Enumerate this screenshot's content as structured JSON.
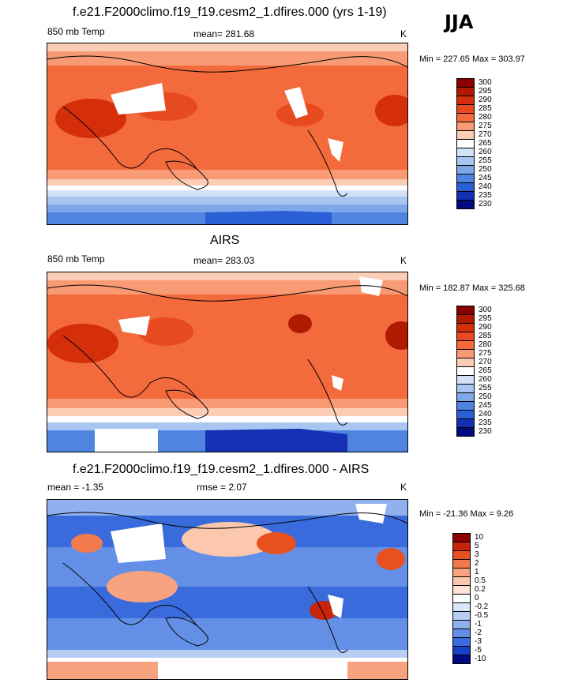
{
  "season": "JJA",
  "panels": [
    {
      "title": "f.e21.F2000climo.f19_f19.cesm2_1.dfires.000 (yrs 1-19)",
      "variable": "850 mb Temp",
      "stat": "mean= 281.68",
      "units": "K",
      "minmax": "Min = 227.65 Max = 303.97",
      "colorbar": [
        "300",
        "295",
        "290",
        "285",
        "280",
        "275",
        "270",
        "265",
        "260",
        "255",
        "250",
        "245",
        "240",
        "235",
        "230"
      ]
    },
    {
      "title": "AIRS",
      "variable": "850 mb Temp",
      "stat": "mean= 283.03",
      "units": "K",
      "minmax": "Min = 182.87 Max = 325.68",
      "colorbar": [
        "300",
        "295",
        "290",
        "285",
        "280",
        "275",
        "270",
        "265",
        "260",
        "255",
        "250",
        "245",
        "240",
        "235",
        "230"
      ]
    },
    {
      "title": "f.e21.F2000climo.f19_f19.cesm2_1.dfires.000 - AIRS",
      "variable": "mean =  -1.35",
      "stat": "rmse =   2.07",
      "units": "K",
      "minmax": "Min = -21.36 Max =   9.26",
      "colorbar": [
        "10",
        "5",
        "3",
        "2",
        "1",
        "0.5",
        "0.2",
        "0",
        "-0.2",
        "-0.5",
        "-1",
        "-2",
        "-3",
        "-5",
        "-10"
      ]
    }
  ],
  "colors": {
    "temp_scale": [
      "#8b0000",
      "#b01a00",
      "#d42e0a",
      "#e84a1f",
      "#f36a3d",
      "#f89b75",
      "#fbcdb5",
      "#ffffff",
      "#d4e2f8",
      "#a9c6f2",
      "#7ea8ea",
      "#4f84e0",
      "#2b5fd6",
      "#1530b5",
      "#000b80"
    ],
    "diff_scale": [
      "#8b0000",
      "#c8240a",
      "#e8501f",
      "#f37a4f",
      "#f8a37f",
      "#fbc7ad",
      "#fde2d5",
      "#ffffff",
      "#d9e6f9",
      "#b6cdf4",
      "#8fb1ee",
      "#6390e6",
      "#3a6bdd",
      "#1740c8",
      "#000b80"
    ]
  }
}
